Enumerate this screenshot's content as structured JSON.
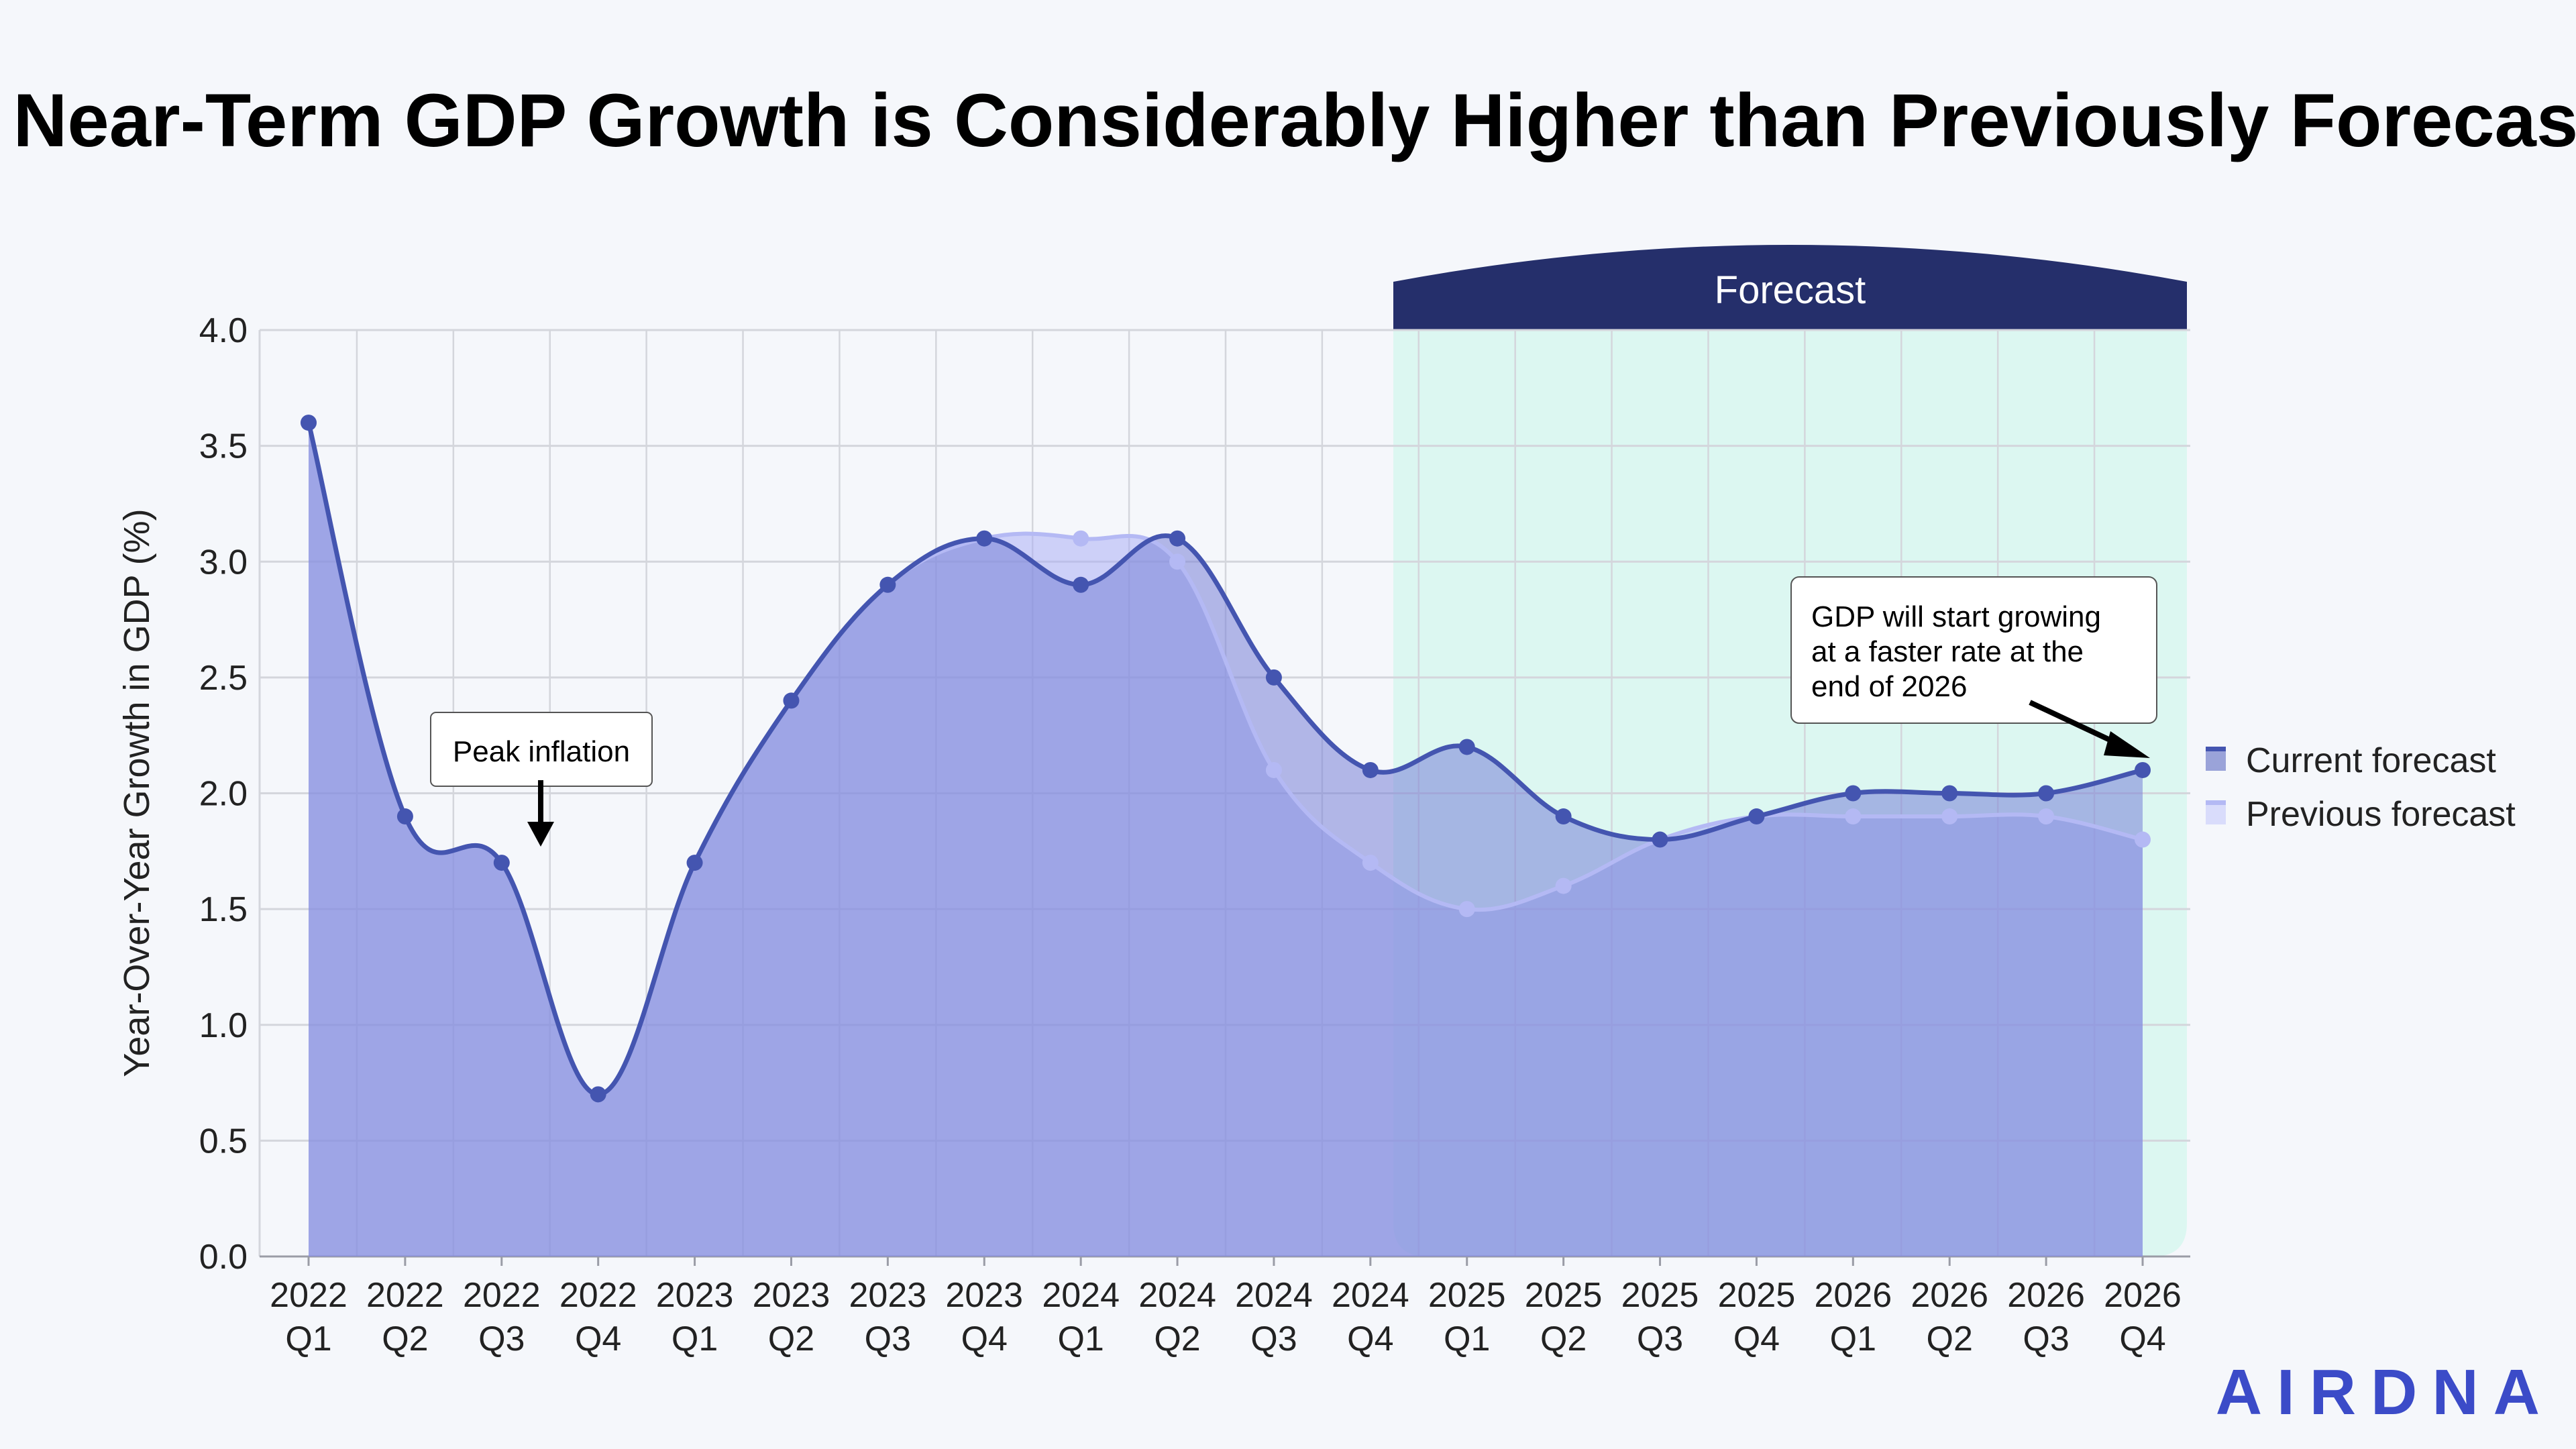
{
  "chart_data": {
    "type": "area",
    "title": "Near-Term GDP Growth is Considerably Higher than Previously Forecast",
    "ylabel": "Year-Over-Year Growth in GDP (%)",
    "xlabel": "",
    "ylim": [
      0,
      4.0
    ],
    "yticks": [
      "0.0",
      "0.5",
      "1.0",
      "1.5",
      "2.0",
      "2.5",
      "3.0",
      "3.5",
      "4.0"
    ],
    "categories": [
      [
        "2022",
        "Q1"
      ],
      [
        "2022",
        "Q2"
      ],
      [
        "2022",
        "Q3"
      ],
      [
        "2022",
        "Q4"
      ],
      [
        "2023",
        "Q1"
      ],
      [
        "2023",
        "Q2"
      ],
      [
        "2023",
        "Q3"
      ],
      [
        "2023",
        "Q4"
      ],
      [
        "2024",
        "Q1"
      ],
      [
        "2024",
        "Q2"
      ],
      [
        "2024",
        "Q3"
      ],
      [
        "2024",
        "Q4"
      ],
      [
        "2025",
        "Q1"
      ],
      [
        "2025",
        "Q2"
      ],
      [
        "2025",
        "Q3"
      ],
      [
        "2025",
        "Q4"
      ],
      [
        "2026",
        "Q1"
      ],
      [
        "2026",
        "Q2"
      ],
      [
        "2026",
        "Q3"
      ],
      [
        "2026",
        "Q4"
      ]
    ],
    "series": [
      {
        "name": "Current forecast",
        "color": "#4455b0",
        "values": [
          3.6,
          1.9,
          1.7,
          0.7,
          1.7,
          2.4,
          2.9,
          3.1,
          2.9,
          3.1,
          2.5,
          2.1,
          2.2,
          1.9,
          1.8,
          1.9,
          2.0,
          2.0,
          2.0,
          2.1
        ]
      },
      {
        "name": "Previous forecast",
        "color": "#b4b9f4",
        "values": [
          3.6,
          1.9,
          1.7,
          0.7,
          1.7,
          2.4,
          2.9,
          3.1,
          3.1,
          3.0,
          2.1,
          1.7,
          1.5,
          1.6,
          1.8,
          1.9,
          1.9,
          1.9,
          1.9,
          1.8
        ]
      }
    ],
    "grid": true,
    "legend_placement": "right",
    "forecast_region": {
      "label": "Forecast",
      "start": "2024 Q4",
      "end": "2026 Q4",
      "header_color": "#252f6b",
      "fill_color": "#dcf7f1"
    },
    "annotations": [
      {
        "text": "Peak inflation",
        "target": "2022 Q3"
      },
      {
        "text_lines": [
          "GDP will start growing",
          "at a faster rate at the",
          "end of 2026"
        ],
        "target": "2026 Q4"
      }
    ]
  },
  "logo": "AIRDNA"
}
